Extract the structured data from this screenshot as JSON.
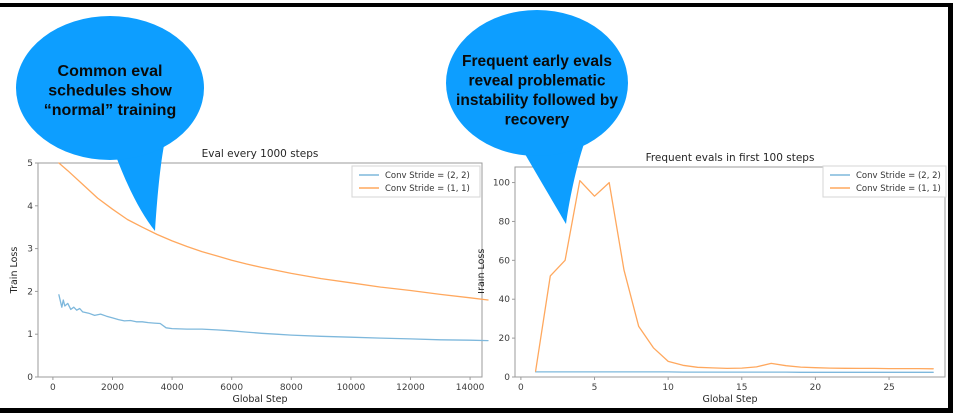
{
  "page": {
    "background": "#ffffff",
    "frame_color": "#000000"
  },
  "bubbles": [
    {
      "name": "left-callout",
      "color": "#0d9eff",
      "text_lines": [
        "Common eval",
        "schedules show",
        "“normal” training"
      ]
    },
    {
      "name": "right-callout",
      "color": "#0d9eff",
      "text_lines": [
        "Frequent early evals",
        "reveal problematic",
        "instability followed by",
        "recovery"
      ]
    }
  ],
  "chart_data": [
    {
      "type": "line",
      "title": "Eval every 1000 steps",
      "xlabel": "Global Step",
      "ylabel": "Train Loss",
      "xlim": [
        -500,
        14400
      ],
      "ylim": [
        0,
        5
      ],
      "xticks": [
        0,
        2000,
        4000,
        6000,
        8000,
        10000,
        12000,
        14000
      ],
      "yticks": [
        0,
        1,
        2,
        3,
        4,
        5
      ],
      "grid": false,
      "legend_position": "upper right",
      "series": [
        {
          "name": "Conv Stride =  (2, 2)",
          "color": "#7eb8dc",
          "x": [
            200,
            300,
            350,
            400,
            500,
            600,
            700,
            800,
            900,
            1000,
            1200,
            1400,
            1600,
            1800,
            2000,
            2200,
            2400,
            2600,
            2800,
            3000,
            3200,
            3400,
            3600,
            3800,
            4000,
            4500,
            5000,
            5500,
            6000,
            6500,
            7000,
            7500,
            8000,
            9000,
            10000,
            11000,
            12000,
            13000,
            14000,
            14600
          ],
          "y": [
            1.92,
            1.63,
            1.8,
            1.66,
            1.72,
            1.58,
            1.63,
            1.56,
            1.6,
            1.52,
            1.49,
            1.44,
            1.47,
            1.42,
            1.38,
            1.34,
            1.31,
            1.32,
            1.29,
            1.29,
            1.27,
            1.26,
            1.25,
            1.15,
            1.13,
            1.12,
            1.12,
            1.1,
            1.08,
            1.05,
            1.02,
            1.0,
            0.98,
            0.95,
            0.93,
            0.91,
            0.89,
            0.87,
            0.86,
            0.85
          ]
        },
        {
          "name": "Conv Stride =  (1, 1)",
          "color": "#ffa85e",
          "x": [
            200,
            500,
            1000,
            1500,
            2000,
            2500,
            3000,
            3500,
            4000,
            4500,
            5000,
            5500,
            6000,
            6500,
            7000,
            7500,
            8000,
            8500,
            9000,
            10000,
            11000,
            12000,
            13000,
            14000,
            14600
          ],
          "y": [
            5.0,
            4.82,
            4.5,
            4.18,
            3.92,
            3.68,
            3.5,
            3.33,
            3.18,
            3.05,
            2.93,
            2.83,
            2.73,
            2.64,
            2.56,
            2.49,
            2.42,
            2.36,
            2.3,
            2.2,
            2.1,
            2.02,
            1.93,
            1.85,
            1.8
          ]
        }
      ]
    },
    {
      "type": "line",
      "title": "Frequent evals in first 100 steps",
      "xlabel": "Global Step",
      "ylabel": "Train Loss",
      "xlim": [
        -0.4,
        28.8
      ],
      "ylim": [
        0,
        108
      ],
      "xticks": [
        0,
        5,
        10,
        15,
        20,
        25
      ],
      "yticks": [
        0,
        20,
        40,
        60,
        80,
        100
      ],
      "grid": false,
      "legend_position": "upper right",
      "series": [
        {
          "name": "Conv Stride =  (2, 2)",
          "color": "#7eb8dc",
          "x": [
            1,
            2,
            3,
            4,
            5,
            6,
            7,
            8,
            9,
            10,
            11,
            12,
            13,
            14,
            15,
            16,
            17,
            18,
            19,
            20,
            21,
            22,
            23,
            24,
            25,
            26,
            27,
            28
          ],
          "y": [
            2.6,
            2.6,
            2.6,
            2.6,
            2.6,
            2.6,
            2.6,
            2.6,
            2.6,
            2.6,
            2.5,
            2.5,
            2.5,
            2.5,
            2.5,
            2.5,
            2.5,
            2.5,
            2.4,
            2.4,
            2.4,
            2.4,
            2.4,
            2.4,
            2.4,
            2.4,
            2.4,
            2.4
          ]
        },
        {
          "name": "Conv Stride =  (1, 1)",
          "color": "#ffa85e",
          "x": [
            1,
            2,
            3,
            4,
            5,
            6,
            7,
            8,
            9,
            10,
            11,
            12,
            13,
            14,
            15,
            16,
            17,
            18,
            19,
            20,
            21,
            22,
            23,
            24,
            25,
            26,
            27,
            28
          ],
          "y": [
            3,
            52,
            60,
            101,
            93,
            100,
            55,
            26,
            15,
            8,
            6,
            5,
            4.7,
            4.4,
            4.6,
            5.2,
            7,
            5.8,
            5.1,
            4.8,
            4.6,
            4.5,
            4.4,
            4.4,
            4.3,
            4.3,
            4.3,
            4.2
          ]
        }
      ]
    }
  ]
}
